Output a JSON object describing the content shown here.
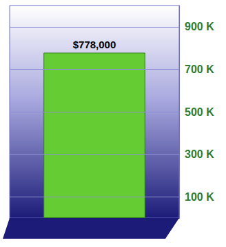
{
  "chart_data": {
    "type": "bar",
    "categories": [
      null
    ],
    "values": [
      778000
    ],
    "value_labels": [
      "$778,000"
    ],
    "data_labels": true,
    "color": "#66cc33",
    "ylim": [
      0,
      1000000
    ],
    "yticks": [
      {
        "value": 100000,
        "label": "100 K"
      },
      {
        "value": 300000,
        "label": "300 K"
      },
      {
        "value": 500000,
        "label": "500 K"
      },
      {
        "value": 700000,
        "label": "700 K"
      },
      {
        "value": 900000,
        "label": "900 K"
      }
    ],
    "grid": true
  }
}
